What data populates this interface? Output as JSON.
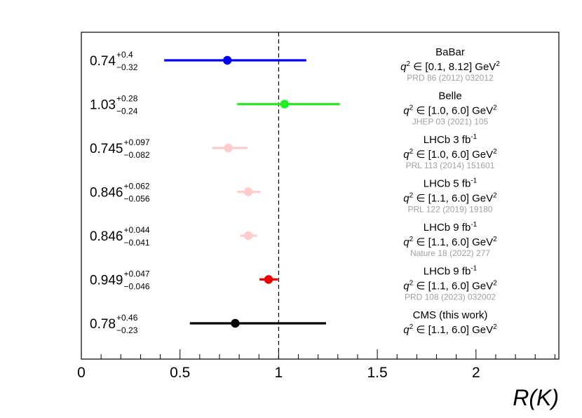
{
  "chart_data": {
    "type": "scatter",
    "xlabel": "R(K)",
    "xlim": [
      0,
      2.42
    ],
    "x_ticks": [
      "0",
      "0.5",
      "1",
      "1.5",
      "2"
    ],
    "reference_line": {
      "x": 1.0,
      "style": "dashed",
      "color": "#000000"
    },
    "grid": false,
    "legend": "none",
    "measurements": [
      {
        "name": "BaBar",
        "name_sup": "",
        "q2_prefix": "q",
        "q2_sup": "2",
        "q2_range": "∈ [0.1, 8.12] GeV",
        "q2_unit_sup": "2",
        "reference": "PRD 86 (2012) 032012",
        "value": 0.74,
        "err_up": 0.4,
        "err_down": 0.32,
        "label_value": "0.74",
        "label_up": "+0.4",
        "label_down": "−0.32",
        "color": "#0000ee"
      },
      {
        "name": "Belle",
        "name_sup": "",
        "q2_prefix": "q",
        "q2_sup": "2",
        "q2_range": "∈ [1.0, 6.0] GeV",
        "q2_unit_sup": "2",
        "reference": "JHEP 03 (2021) 105",
        "value": 1.03,
        "err_up": 0.28,
        "err_down": 0.24,
        "label_value": "1.03",
        "label_up": "+0.28",
        "label_down": "−0.24",
        "color": "#22ee22"
      },
      {
        "name": "LHCb 3 fb",
        "name_sup": "-1",
        "q2_prefix": "q",
        "q2_sup": "2",
        "q2_range": "∈ [1.0, 6.0] GeV",
        "q2_unit_sup": "2",
        "reference": "PRL 113 (2014) 151601",
        "value": 0.745,
        "err_up": 0.097,
        "err_down": 0.082,
        "label_value": "0.745",
        "label_up": "+0.097",
        "label_down": "−0.082",
        "color": "#ffcccc"
      },
      {
        "name": "LHCb 5 fb",
        "name_sup": "-1",
        "q2_prefix": "q",
        "q2_sup": "2",
        "q2_range": "∈ [1.1, 6.0] GeV",
        "q2_unit_sup": "2",
        "reference": "PRL 122 (2019) 19180",
        "value": 0.846,
        "err_up": 0.062,
        "err_down": 0.056,
        "label_value": "0.846",
        "label_up": "+0.062",
        "label_down": "−0.056",
        "color": "#ffcccc"
      },
      {
        "name": "LHCb 9 fb",
        "name_sup": "-1",
        "q2_prefix": "q",
        "q2_sup": "2",
        "q2_range": "∈ [1.1, 6.0] GeV",
        "q2_unit_sup": "2",
        "reference": "Nature 18 (2022) 277",
        "value": 0.846,
        "err_up": 0.044,
        "err_down": 0.041,
        "label_value": "0.846",
        "label_up": "+0.044",
        "label_down": "−0.041",
        "color": "#ffcccc"
      },
      {
        "name": "LHCb 9 fb",
        "name_sup": "-1",
        "q2_prefix": "q",
        "q2_sup": "2",
        "q2_range": "∈ [1.1, 6.0] GeV",
        "q2_unit_sup": "2",
        "reference": "PRD 108 (2023) 032002",
        "value": 0.949,
        "err_up": 0.047,
        "err_down": 0.046,
        "label_value": "0.949",
        "label_up": "+0.047",
        "label_down": "−0.046",
        "color": "#ee0000"
      },
      {
        "name": "CMS (this work)",
        "name_sup": "",
        "q2_prefix": "q",
        "q2_sup": "2",
        "q2_range": "∈ [1.1, 6.0] GeV",
        "q2_unit_sup": "2",
        "reference": "",
        "value": 0.78,
        "err_up": 0.46,
        "err_down": 0.23,
        "label_value": "0.78",
        "label_up": "+0.46",
        "label_down": "−0.23",
        "color": "#000000"
      }
    ]
  }
}
